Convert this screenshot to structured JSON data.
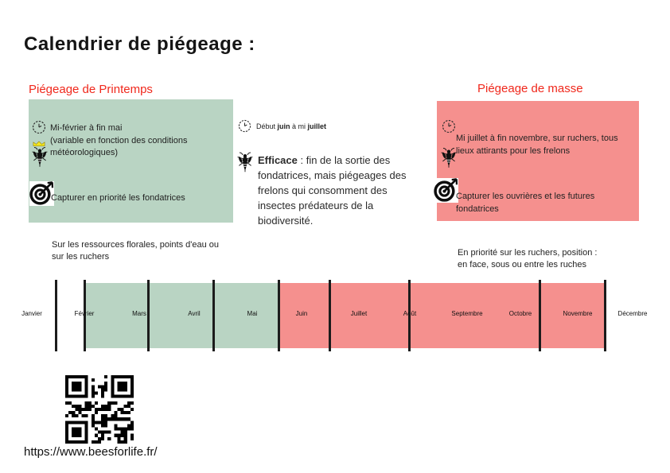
{
  "page": {
    "title": "Calendrier de piégeage :"
  },
  "colors": {
    "heading_red": "#f0281c",
    "spring_green": "#b9d4c3",
    "mass_pink": "#f5908e"
  },
  "spring": {
    "heading": "Piégeage de Printemps",
    "period": "Mi-février à fin mai\n(variable en fonction des conditions\nmétéorologiques)",
    "goal": "Capturer  en priorité les fondatrices",
    "note": "Sur les ressources florales, points d'eau ou\nsur les ruchers"
  },
  "summer": {
    "period_prefix": "Début ",
    "period_bold1": "juin",
    "period_mid": " à mi ",
    "period_bold2": "juillet",
    "efficacy_label": "Efficace",
    "efficacy_text": " : fin de la sortie des\nfondatrices, mais piégeages des\nfrelons qui consomment des\ninsectes prédateurs de la\nbiodiversité."
  },
  "mass": {
    "heading": "Piégeage de masse",
    "period": "Mi juillet à fin novembre, sur ruchers, tous\nlieux attirants pour les frelons",
    "goal": "Capturer les ouvrières et les futures\nfondatrices",
    "note": "En priorité sur les ruchers, position :\nen face, sous ou entre les ruches"
  },
  "timeline": {
    "months": [
      "Janvier",
      "Février",
      "Mars",
      "Avril",
      "Mai",
      "Juin",
      "Juillet",
      "Août",
      "Septembre",
      "Octobre",
      "Novembre",
      "Décembre"
    ],
    "spring_span_months": [
      "mi-Février",
      "Mars",
      "Avril",
      "Mai"
    ],
    "mass_span_months": [
      "Juin",
      "Juillet",
      "Août",
      "Septembre",
      "Octobre",
      "Novembre"
    ]
  },
  "icons": {
    "clock": "clock-icon",
    "queen_hornet": "queen-hornet-icon",
    "hornet": "hornet-icon",
    "target": "target-icon",
    "qr": "qr-code"
  },
  "footer": {
    "url": "https://www.beesforlife.fr/"
  }
}
